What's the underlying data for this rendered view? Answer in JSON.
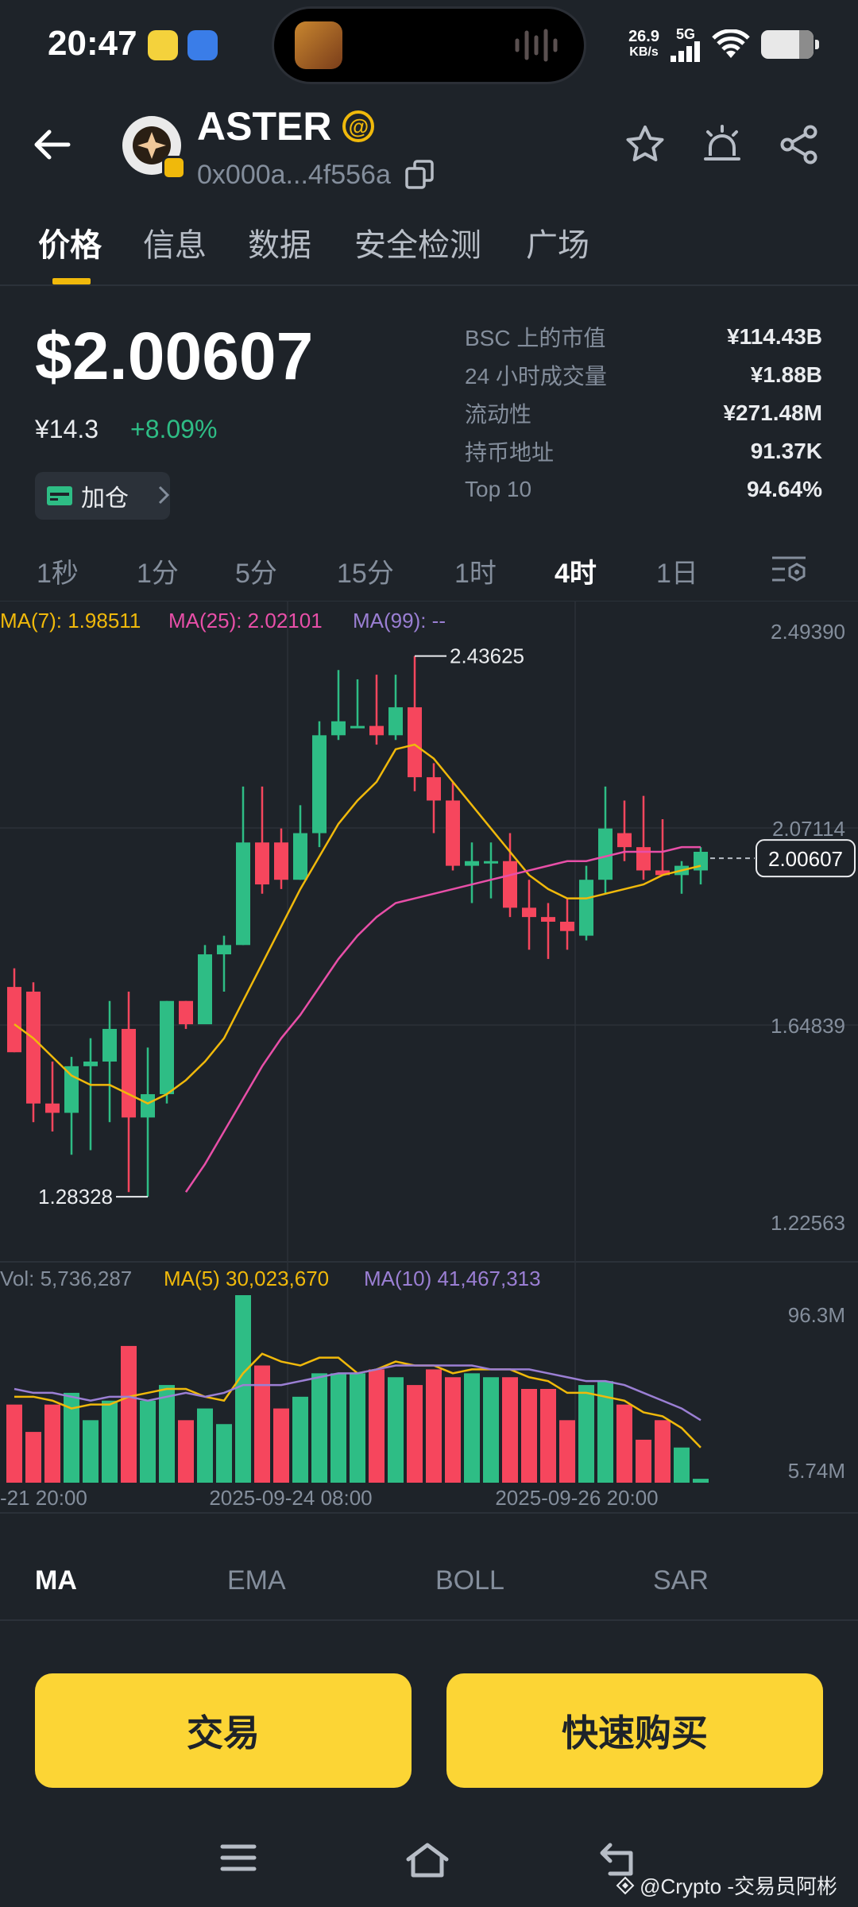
{
  "status_bar": {
    "time": "20:47",
    "speed_value": "26.9",
    "speed_unit": "KB/s",
    "network": "5G"
  },
  "header": {
    "token_name": "ASTER",
    "address": "0x000a...4f556a"
  },
  "tabs": [
    {
      "label": "价格",
      "active": true
    },
    {
      "label": "信息"
    },
    {
      "label": "数据"
    },
    {
      "label": "安全检测"
    },
    {
      "label": "广场"
    }
  ],
  "price": {
    "usd": "$2.00607",
    "cny": "¥14.3",
    "change": "+8.09%",
    "add_position_label": "加仓"
  },
  "stats": [
    {
      "label": "BSC 上的市值",
      "value": "¥114.43B"
    },
    {
      "label": "24 小时成交量",
      "value": "¥1.88B"
    },
    {
      "label": "流动性",
      "value": "¥271.48M"
    },
    {
      "label": "持币地址",
      "value": "91.37K"
    },
    {
      "label": "Top 10",
      "value": "94.64%"
    }
  ],
  "intervals": [
    {
      "label": "1秒"
    },
    {
      "label": "1分"
    },
    {
      "label": "5分"
    },
    {
      "label": "15分"
    },
    {
      "label": "1时"
    },
    {
      "label": "4时",
      "active": true
    },
    {
      "label": "1日"
    }
  ],
  "chart_legend": {
    "ma7": "MA(7): 1.98511",
    "ma25": "MA(25): 2.02101",
    "ma99": "MA(99): --",
    "vol": "Vol: 5,736,287",
    "vol_ma5": "MA(5) 30,023,670",
    "vol_ma10": "MA(10) 41,467,313"
  },
  "colors": {
    "up": "#2ebd85",
    "down": "#f6465d",
    "ma7": "#f0b90b",
    "ma25": "#e84fa8",
    "ma99": "#9b7fd4",
    "accent": "#fcd535"
  },
  "chart_data": {
    "type": "candlestick",
    "price_axis_ticks": [
      "2.49390",
      "2.07114",
      "1.64839",
      "1.22563"
    ],
    "current_price_label": "2.00607",
    "high_label": "2.43625",
    "low_label": "1.28328",
    "volume_axis_ticks": [
      "96.3M",
      "5.74M"
    ],
    "time_labels": [
      "-21 20:00",
      "2025-09-24 08:00",
      "2025-09-26 20:00"
    ],
    "ylim": [
      1.22563,
      2.4939
    ],
    "candles": [
      {
        "o": 1.73,
        "h": 1.77,
        "l": 1.59,
        "c": 1.59
      },
      {
        "o": 1.72,
        "h": 1.74,
        "l": 1.44,
        "c": 1.48
      },
      {
        "o": 1.48,
        "h": 1.57,
        "l": 1.42,
        "c": 1.46
      },
      {
        "o": 1.46,
        "h": 1.58,
        "l": 1.37,
        "c": 1.56
      },
      {
        "o": 1.56,
        "h": 1.62,
        "l": 1.38,
        "c": 1.57
      },
      {
        "o": 1.57,
        "h": 1.7,
        "l": 1.44,
        "c": 1.64
      },
      {
        "o": 1.64,
        "h": 1.72,
        "l": 1.29,
        "c": 1.45
      },
      {
        "o": 1.45,
        "h": 1.6,
        "l": 1.28,
        "c": 1.5
      },
      {
        "o": 1.5,
        "h": 1.7,
        "l": 1.48,
        "c": 1.7
      },
      {
        "o": 1.7,
        "h": 1.7,
        "l": 1.64,
        "c": 1.65
      },
      {
        "o": 1.65,
        "h": 1.82,
        "l": 1.65,
        "c": 1.8
      },
      {
        "o": 1.8,
        "h": 1.84,
        "l": 1.72,
        "c": 1.82
      },
      {
        "o": 1.82,
        "h": 2.16,
        "l": 1.82,
        "c": 2.04
      },
      {
        "o": 2.04,
        "h": 2.16,
        "l": 1.93,
        "c": 1.95
      },
      {
        "o": 2.04,
        "h": 2.07,
        "l": 1.94,
        "c": 1.96
      },
      {
        "o": 1.96,
        "h": 2.12,
        "l": 1.96,
        "c": 2.06
      },
      {
        "o": 2.06,
        "h": 2.3,
        "l": 2.03,
        "c": 2.27
      },
      {
        "o": 2.27,
        "h": 2.41,
        "l": 2.26,
        "c": 2.3
      },
      {
        "o": 2.29,
        "h": 2.39,
        "l": 2.29,
        "c": 2.29
      },
      {
        "o": 2.29,
        "h": 2.4,
        "l": 2.25,
        "c": 2.27
      },
      {
        "o": 2.27,
        "h": 2.4,
        "l": 2.26,
        "c": 2.33
      },
      {
        "o": 2.33,
        "h": 2.44,
        "l": 2.15,
        "c": 2.18
      },
      {
        "o": 2.18,
        "h": 2.21,
        "l": 2.06,
        "c": 2.13
      },
      {
        "o": 2.13,
        "h": 2.17,
        "l": 1.98,
        "c": 1.99
      },
      {
        "o": 1.99,
        "h": 2.04,
        "l": 1.91,
        "c": 2.0
      },
      {
        "o": 2.0,
        "h": 2.04,
        "l": 1.92,
        "c": 2.0
      },
      {
        "o": 2.0,
        "h": 2.06,
        "l": 1.88,
        "c": 1.9
      },
      {
        "o": 1.9,
        "h": 1.96,
        "l": 1.81,
        "c": 1.88
      },
      {
        "o": 1.88,
        "h": 1.91,
        "l": 1.79,
        "c": 1.87
      },
      {
        "o": 1.87,
        "h": 1.92,
        "l": 1.81,
        "c": 1.85
      },
      {
        "o": 1.84,
        "h": 1.99,
        "l": 1.83,
        "c": 1.96
      },
      {
        "o": 1.96,
        "h": 2.16,
        "l": 1.93,
        "c": 2.07
      },
      {
        "o": 2.06,
        "h": 2.13,
        "l": 2.0,
        "c": 2.03
      },
      {
        "o": 2.03,
        "h": 2.14,
        "l": 1.96,
        "c": 1.98
      },
      {
        "o": 1.98,
        "h": 2.09,
        "l": 1.97,
        "c": 1.97
      },
      {
        "o": 1.97,
        "h": 2.0,
        "l": 1.93,
        "c": 1.99
      },
      {
        "o": 1.98,
        "h": 2.03,
        "l": 1.95,
        "c": 2.02
      }
    ],
    "ma7": [
      1.65,
      1.62,
      1.58,
      1.54,
      1.52,
      1.52,
      1.5,
      1.48,
      1.5,
      1.53,
      1.57,
      1.62,
      1.7,
      1.78,
      1.86,
      1.94,
      2.01,
      2.08,
      2.13,
      2.17,
      2.24,
      2.25,
      2.22,
      2.17,
      2.12,
      2.07,
      2.02,
      1.97,
      1.94,
      1.92,
      1.92,
      1.93,
      1.94,
      1.95,
      1.97,
      1.98,
      1.99
    ],
    "ma25": [
      null,
      null,
      null,
      null,
      null,
      null,
      null,
      null,
      null,
      1.29,
      1.35,
      1.42,
      1.49,
      1.56,
      1.62,
      1.67,
      1.73,
      1.79,
      1.84,
      1.88,
      1.91,
      1.92,
      1.93,
      1.94,
      1.95,
      1.96,
      1.97,
      1.98,
      1.99,
      2.0,
      2.0,
      2.01,
      2.02,
      2.02,
      2.02,
      2.03,
      2.03
    ],
    "volume": [
      20,
      13,
      20,
      23,
      16,
      21,
      35,
      21,
      25,
      16,
      19,
      15,
      48,
      30,
      19,
      22,
      28,
      28,
      28,
      29,
      27,
      25,
      29,
      27,
      28,
      27,
      27,
      24,
      24,
      16,
      25,
      26,
      20,
      11,
      16,
      9,
      1
    ],
    "vol_ma5": [
      22,
      22,
      21,
      19,
      20,
      20,
      22,
      23,
      24,
      24,
      22,
      21,
      28,
      33,
      31,
      30,
      32,
      32,
      28,
      29,
      31,
      30,
      30,
      28,
      29,
      29,
      29,
      27,
      26,
      23,
      23,
      22,
      21,
      18,
      17,
      14,
      9
    ],
    "vol_ma10": [
      24,
      23,
      23,
      22,
      21,
      22,
      22,
      21,
      22,
      23,
      22,
      23,
      25,
      25,
      25,
      26,
      27,
      28,
      28,
      29,
      30,
      30,
      30,
      30,
      30,
      29,
      29,
      29,
      28,
      27,
      26,
      26,
      25,
      23,
      21,
      19,
      16
    ]
  },
  "indicator_tabs": [
    {
      "label": "MA",
      "active": true
    },
    {
      "label": "EMA"
    },
    {
      "label": "BOLL"
    },
    {
      "label": "SAR"
    }
  ],
  "actions": {
    "trade": "交易",
    "quick_buy": "快速购买"
  },
  "watermark": "@Crypto -交易员阿彬"
}
